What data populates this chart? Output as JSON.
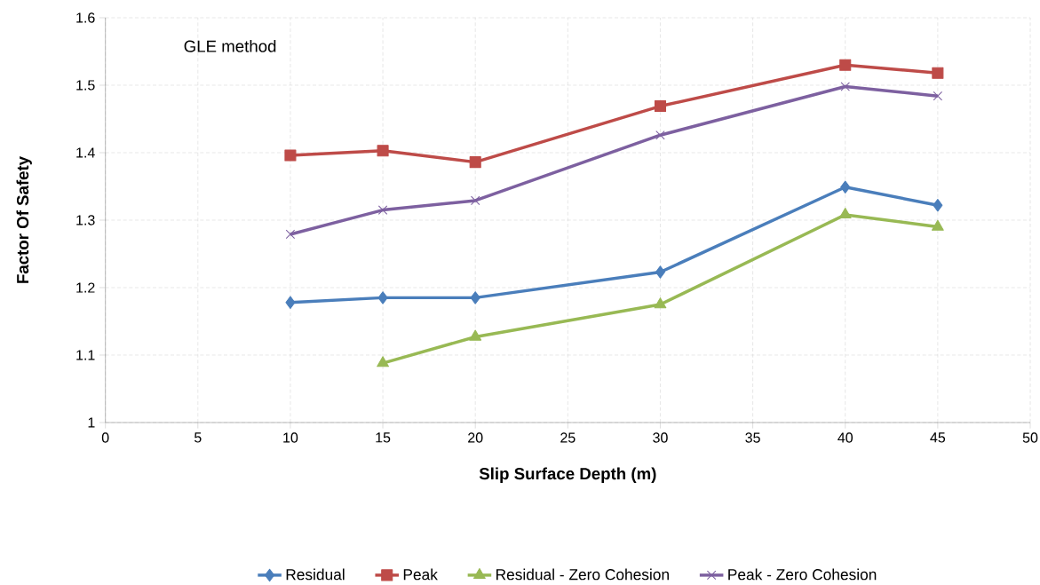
{
  "chart_data": {
    "type": "line",
    "xlabel": "Slip Surface Depth (m)",
    "ylabel": "Factor Of Safety",
    "annotations": [
      "GLE method"
    ],
    "x": [
      10,
      15,
      20,
      30,
      40,
      45
    ],
    "series": [
      {
        "name": "Residual",
        "color": "#4a7ebb",
        "marker": "diamond",
        "values": [
          1.178,
          1.185,
          1.185,
          1.223,
          1.349,
          1.322
        ]
      },
      {
        "name": "Peak",
        "color": "#be4b48",
        "marker": "square",
        "values": [
          1.396,
          1.403,
          1.386,
          1.469,
          1.53,
          1.518
        ]
      },
      {
        "name": "Residual - Zero Cohesion",
        "color": "#98b954",
        "marker": "triangle",
        "values": [
          null,
          1.088,
          1.127,
          1.175,
          1.308,
          1.29
        ]
      },
      {
        "name": "Peak - Zero Cohesion",
        "color": "#7d60a0",
        "marker": "cross",
        "values": [
          1.279,
          1.315,
          1.329,
          1.426,
          1.498,
          1.484
        ]
      }
    ],
    "xlim": [
      0,
      50
    ],
    "xticks": [
      0,
      5,
      10,
      15,
      20,
      25,
      30,
      35,
      40,
      45,
      50
    ],
    "ylim": [
      1,
      1.6
    ],
    "yticks": [
      1,
      1.1,
      1.2,
      1.3,
      1.4,
      1.5,
      1.6
    ],
    "grid": true,
    "legend": "bottom",
    "line_style": "solid"
  }
}
